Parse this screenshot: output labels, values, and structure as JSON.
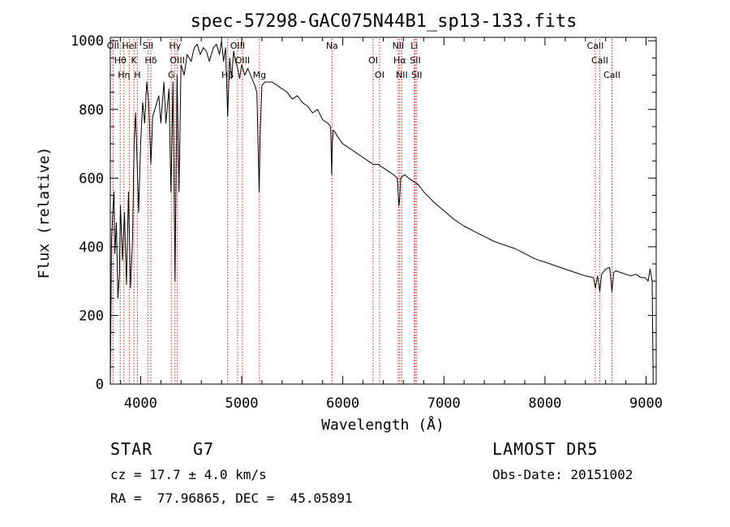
{
  "chart_data": {
    "type": "line",
    "title": "spec-57298-GAC075N44B1_sp13-133.fits",
    "xlabel": "Wavelength (Å)",
    "ylabel": "Flux (relative)",
    "xlim": [
      3700,
      9100
    ],
    "ylim": [
      0,
      1010
    ],
    "x_ticks": [
      4000,
      5000,
      6000,
      7000,
      8000,
      9000
    ],
    "y_ticks": [
      0,
      200,
      400,
      600,
      800,
      1000
    ],
    "grid": false,
    "series": [
      {
        "x": [
          3700,
          3712,
          3725,
          3737,
          3745,
          3760,
          3775,
          3790,
          3800,
          3820,
          3840,
          3860,
          3880,
          3900,
          3920,
          3935,
          3950,
          3968,
          3980,
          4000,
          4020,
          4040,
          4060,
          4080,
          4101,
          4120,
          4150,
          4180,
          4200,
          4230,
          4250,
          4280,
          4300,
          4320,
          4340,
          4360,
          4380,
          4400,
          4430,
          4460,
          4500,
          4530,
          4560,
          4590,
          4620,
          4650,
          4680,
          4700,
          4720,
          4750,
          4780,
          4800,
          4820,
          4840,
          4861,
          4880,
          4900,
          4920,
          4940,
          4960,
          4980,
          5000,
          5030,
          5060,
          5100,
          5130,
          5150,
          5172,
          5183,
          5200,
          5230,
          5270,
          5300,
          5350,
          5400,
          5450,
          5500,
          5550,
          5600,
          5650,
          5700,
          5750,
          5800,
          5850,
          5880,
          5890,
          5896,
          5905,
          5920,
          5950,
          6000,
          6050,
          6100,
          6150,
          6200,
          6250,
          6300,
          6350,
          6400,
          6450,
          6500,
          6540,
          6555,
          6563,
          6572,
          6590,
          6610,
          6650,
          6700,
          6750,
          6800,
          6900,
          7000,
          7100,
          7200,
          7300,
          7400,
          7500,
          7600,
          7700,
          7800,
          7900,
          8000,
          8100,
          8200,
          8300,
          8400,
          8480,
          8498,
          8520,
          8542,
          8560,
          8600,
          8640,
          8662,
          8680,
          8700,
          8750,
          8800,
          8850,
          8900,
          8950,
          8990,
          9020,
          9040,
          9060,
          9070
        ],
        "values": [
          0,
          420,
          500,
          560,
          380,
          470,
          250,
          320,
          520,
          360,
          500,
          290,
          560,
          280,
          420,
          700,
          790,
          620,
          500,
          700,
          820,
          760,
          880,
          820,
          640,
          780,
          810,
          840,
          760,
          880,
          760,
          860,
          560,
          880,
          300,
          900,
          560,
          930,
          900,
          960,
          940,
          980,
          990,
          960,
          980,
          970,
          940,
          960,
          980,
          990,
          960,
          1000,
          940,
          980,
          780,
          950,
          890,
          970,
          940,
          920,
          890,
          930,
          900,
          920,
          890,
          870,
          850,
          560,
          730,
          870,
          880,
          880,
          880,
          870,
          860,
          850,
          830,
          840,
          820,
          810,
          790,
          800,
          770,
          760,
          750,
          610,
          700,
          740,
          735,
          720,
          700,
          690,
          680,
          670,
          660,
          650,
          640,
          640,
          630,
          620,
          610,
          600,
          520,
          540,
          600,
          605,
          610,
          600,
          590,
          580,
          560,
          530,
          505,
          480,
          460,
          445,
          430,
          415,
          405,
          395,
          380,
          365,
          355,
          345,
          335,
          325,
          315,
          310,
          280,
          315,
          270,
          320,
          335,
          340,
          270,
          325,
          330,
          325,
          320,
          315,
          320,
          310,
          310,
          300,
          335,
          300,
          0
        ]
      }
    ],
    "line_markers": [
      {
        "wl": 3727,
        "label": "OII"
      },
      {
        "wl": 3798,
        "label": "Hθ"
      },
      {
        "wl": 3835,
        "label": "Hη"
      },
      {
        "wl": 3889,
        "label": "HeI"
      },
      {
        "wl": 3934,
        "label": "K"
      },
      {
        "wl": 3968,
        "label": "H"
      },
      {
        "wl": 4072,
        "label": "SII"
      },
      {
        "wl": 4101,
        "label": "Hδ"
      },
      {
        "wl": 4304,
        "label": "G"
      },
      {
        "wl": 4340,
        "label": "Hγ"
      },
      {
        "wl": 4363,
        "label": "OIII"
      },
      {
        "wl": 4861,
        "label": "Hβ"
      },
      {
        "wl": 4959,
        "label": "OIII"
      },
      {
        "wl": 5007,
        "label": "OIII"
      },
      {
        "wl": 5175,
        "label": "Mg"
      },
      {
        "wl": 5893,
        "label": "Na"
      },
      {
        "wl": 6300,
        "label": "OI"
      },
      {
        "wl": 6364,
        "label": "OI"
      },
      {
        "wl": 6548,
        "label": "NII"
      },
      {
        "wl": 6563,
        "label": "Hα"
      },
      {
        "wl": 6584,
        "label": "NII"
      },
      {
        "wl": 6707,
        "label": "Li"
      },
      {
        "wl": 6717,
        "label": "SII"
      },
      {
        "wl": 6731,
        "label": "SII"
      },
      {
        "wl": 8498,
        "label": "CaII"
      },
      {
        "wl": 8542,
        "label": "CaII"
      },
      {
        "wl": 8662,
        "label": "CaII"
      }
    ],
    "line_color": "#000000",
    "marker_color": "#d62020"
  },
  "info": {
    "object_class": "STAR",
    "subclass": "G7",
    "survey": "LAMOST DR5",
    "redshift_text": "cz = 17.7 ± 4.0 km/s",
    "obs_date": "Obs-Date: 20151002",
    "coords": "RA =  77.96865, DEC =  45.05891"
  }
}
